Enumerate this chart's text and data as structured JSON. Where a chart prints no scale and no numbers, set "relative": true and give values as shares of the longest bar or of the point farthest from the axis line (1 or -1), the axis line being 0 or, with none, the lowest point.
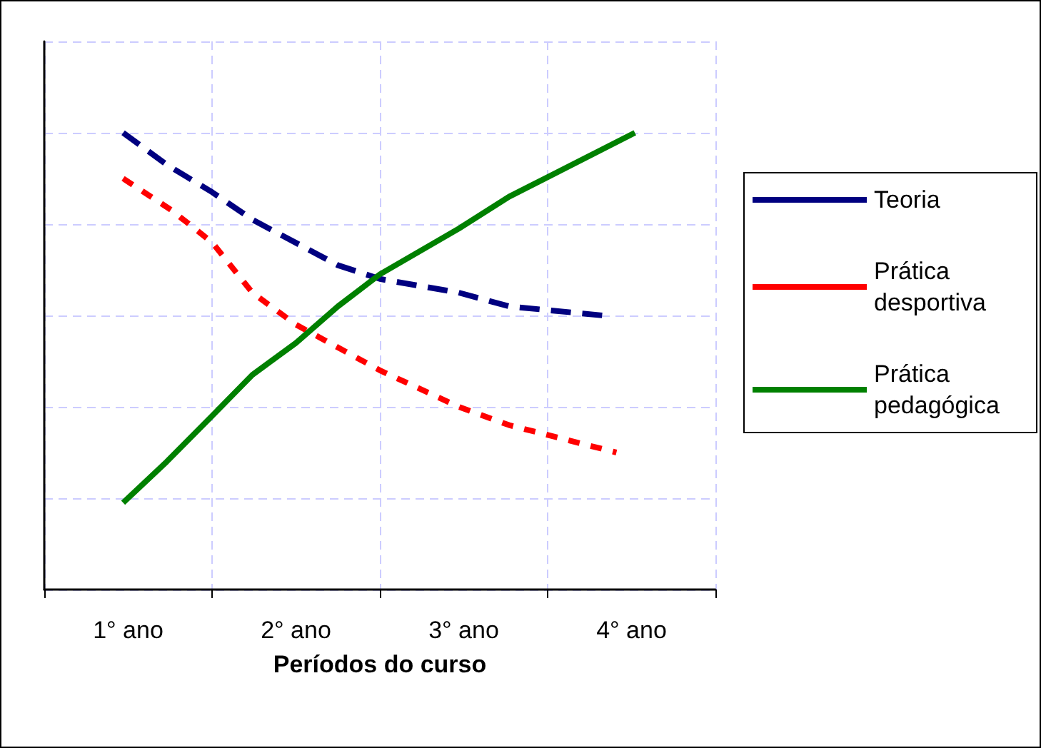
{
  "chart_data": {
    "type": "line",
    "relative": true,
    "xlabel": "Períodos do curso",
    "xlim": [
      0.5,
      4.5
    ],
    "xticks": [
      {
        "value": 1,
        "label": "1° ano"
      },
      {
        "value": 1.5,
        "label": null
      },
      {
        "value": 2,
        "label": "2° ano"
      },
      {
        "value": 2.5,
        "label": null
      },
      {
        "value": 3,
        "label": "3° ano"
      },
      {
        "value": 3.5,
        "label": null
      },
      {
        "value": 4,
        "label": "4° ano"
      }
    ],
    "grid": true,
    "legend": "right",
    "marker": "none",
    "series": [
      {
        "name": "Teoria",
        "color": "#000080",
        "line_style": "dashed",
        "x": [
          0.97,
          1.23,
          1.5,
          1.74,
          2.25,
          2.5,
          2.97,
          3.27,
          3.83
        ],
        "values": [
          1.0,
          0.93,
          0.87,
          0.81,
          0.71,
          0.68,
          0.65,
          0.62,
          0.6
        ]
      },
      {
        "name": "Prática desportiva",
        "color": "#ff0000",
        "line_style": "dotted",
        "x": [
          0.97,
          1.26,
          1.5,
          1.74,
          2.0,
          2.25,
          2.5,
          2.97,
          3.27,
          3.91
        ],
        "values": [
          0.9,
          0.83,
          0.76,
          0.65,
          0.58,
          0.53,
          0.48,
          0.4,
          0.36,
          0.3
        ]
      },
      {
        "name": "Prática pedagógica",
        "color": "#008000",
        "line_style": "solid",
        "x": [
          0.97,
          1.23,
          1.5,
          1.74,
          2.0,
          2.25,
          2.5,
          2.97,
          3.27,
          4.02
        ],
        "values": [
          0.19,
          0.28,
          0.38,
          0.47,
          0.54,
          0.62,
          0.69,
          0.79,
          0.86,
          1.0
        ]
      }
    ]
  }
}
